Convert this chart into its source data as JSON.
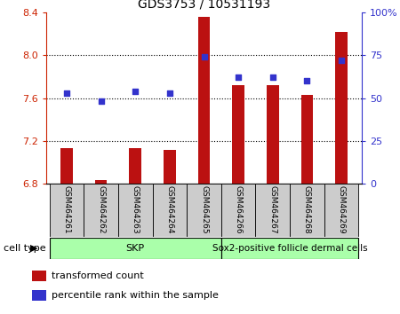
{
  "title": "GDS3753 / 10531193",
  "samples": [
    "GSM464261",
    "GSM464262",
    "GSM464263",
    "GSM464264",
    "GSM464265",
    "GSM464266",
    "GSM464267",
    "GSM464268",
    "GSM464269"
  ],
  "transformed_count": [
    7.13,
    6.83,
    7.13,
    7.12,
    8.36,
    7.72,
    7.72,
    7.63,
    8.22
  ],
  "percentile_rank": [
    53,
    48,
    54,
    53,
    74,
    62,
    62,
    60,
    72
  ],
  "ylim_left": [
    6.8,
    8.4
  ],
  "ylim_right": [
    0,
    100
  ],
  "yticks_left": [
    6.8,
    7.2,
    7.6,
    8.0,
    8.4
  ],
  "yticks_right": [
    0,
    25,
    50,
    75,
    100
  ],
  "ytick_labels_right": [
    "0",
    "25",
    "50",
    "75",
    "100%"
  ],
  "bar_color": "#bb1111",
  "dot_color": "#3333cc",
  "bar_width": 0.35,
  "left_axis_color": "#cc2200",
  "right_axis_color": "#3333cc",
  "legend_items": [
    "transformed count",
    "percentile rank within the sample"
  ],
  "cell_type_label": "cell type",
  "skp_label": "SKP",
  "sox2_label": "Sox2-positive follicle dermal cells",
  "skp_color": "#aaffaa",
  "sox2_color": "#aaffaa",
  "sample_bg_color": "#cccccc",
  "grid_yticks": [
    7.2,
    7.6,
    8.0
  ]
}
